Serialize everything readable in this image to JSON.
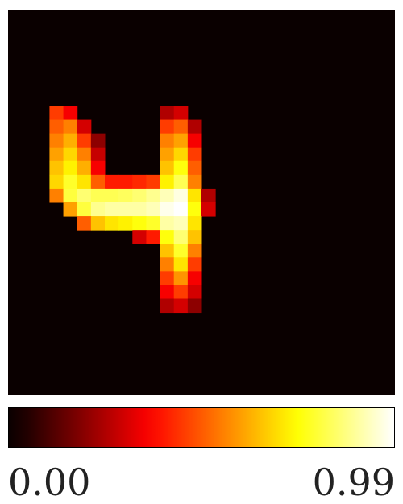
{
  "chart_data": {
    "type": "heatmap",
    "colormap": "hot",
    "background_color": "#0a0000",
    "grid": false,
    "legend": "colorbar-bottom",
    "value_range": [
      0.0,
      0.99
    ],
    "colorbar_ticks": [
      "0.00",
      "0.99"
    ],
    "grid_size": [
      28,
      28
    ],
    "rows": {
      "7": {
        "3": 0.45,
        "4": 0.35,
        "11": 0.25,
        "12": 0.3
      },
      "8": {
        "3": 0.5,
        "4": 0.55,
        "5": 0.3,
        "11": 0.45,
        "12": 0.5,
        "13": 0.25
      },
      "9": {
        "3": 0.55,
        "4": 0.62,
        "5": 0.45,
        "6": 0.2,
        "11": 0.55,
        "12": 0.6,
        "13": 0.35
      },
      "10": {
        "3": 0.6,
        "4": 0.68,
        "5": 0.55,
        "6": 0.28,
        "11": 0.6,
        "12": 0.68,
        "13": 0.45
      },
      "11": {
        "3": 0.65,
        "4": 0.72,
        "5": 0.62,
        "6": 0.35,
        "11": 0.65,
        "12": 0.75,
        "13": 0.5
      },
      "12": {
        "3": 0.68,
        "4": 0.78,
        "5": 0.7,
        "6": 0.5,
        "7": 0.4,
        "8": 0.4,
        "9": 0.42,
        "10": 0.45,
        "11": 0.72,
        "12": 0.82,
        "13": 0.55
      },
      "13": {
        "3": 0.55,
        "4": 0.8,
        "5": 0.85,
        "6": 0.82,
        "7": 0.82,
        "8": 0.83,
        "9": 0.85,
        "10": 0.88,
        "11": 0.92,
        "12": 0.96,
        "13": 0.7,
        "14": 0.25
      },
      "14": {
        "4": 0.6,
        "5": 0.8,
        "6": 0.88,
        "7": 0.9,
        "8": 0.9,
        "9": 0.9,
        "10": 0.92,
        "11": 0.97,
        "12": 0.99,
        "13": 0.75,
        "14": 0.3
      },
      "15": {
        "5": 0.5,
        "6": 0.65,
        "7": 0.7,
        "8": 0.72,
        "9": 0.75,
        "10": 0.78,
        "11": 0.9,
        "12": 0.92,
        "13": 0.7
      },
      "16": {
        "9": 0.3,
        "10": 0.4,
        "11": 0.75,
        "12": 0.85,
        "13": 0.65
      },
      "17": {
        "11": 0.65,
        "12": 0.78,
        "13": 0.55
      },
      "18": {
        "11": 0.55,
        "12": 0.7,
        "13": 0.45
      },
      "19": {
        "11": 0.45,
        "12": 0.58,
        "13": 0.35
      },
      "20": {
        "11": 0.35,
        "12": 0.45,
        "13": 0.3
      },
      "21": {
        "11": 0.25,
        "12": 0.3,
        "13": 0.2
      }
    }
  }
}
